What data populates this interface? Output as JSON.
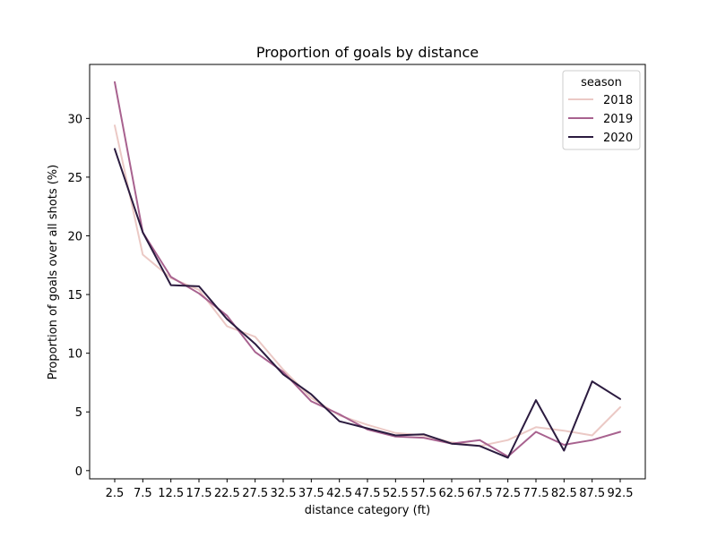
{
  "chart_data": {
    "type": "line",
    "title": "Proportion of goals by distance",
    "xlabel": "distance category (ft)",
    "ylabel": "Proportion of goals over all shots (%)",
    "categories": [
      "2.5",
      "7.5",
      "12.5",
      "17.5",
      "22.5",
      "27.5",
      "32.5",
      "37.5",
      "42.5",
      "47.5",
      "52.5",
      "57.5",
      "62.5",
      "67.5",
      "72.5",
      "77.5",
      "82.5",
      "87.5",
      "92.5"
    ],
    "ylim": [
      -0.7,
      34.6
    ],
    "yticks": [
      0,
      5,
      10,
      15,
      20,
      25,
      30
    ],
    "grid": false,
    "legend": {
      "title": "season",
      "position": "top-right"
    },
    "series": [
      {
        "name": "2018",
        "color": "#ebc9c5",
        "values": [
          29.4,
          18.4,
          16.4,
          15.4,
          12.3,
          11.4,
          8.6,
          6.2,
          4.7,
          3.9,
          3.2,
          3.0,
          2.4,
          2.1,
          2.6,
          3.7,
          3.4,
          3.0,
          5.4
        ]
      },
      {
        "name": "2019",
        "color": "#a8628f",
        "values": [
          33.1,
          20.3,
          16.5,
          15.1,
          13.2,
          10.1,
          8.4,
          5.9,
          4.8,
          3.5,
          2.9,
          2.8,
          2.3,
          2.6,
          1.2,
          3.3,
          2.2,
          2.6,
          3.3
        ]
      },
      {
        "name": "2020",
        "color": "#2b1b3f",
        "values": [
          27.4,
          20.3,
          15.8,
          15.7,
          12.9,
          10.8,
          8.2,
          6.5,
          4.2,
          3.6,
          3.0,
          3.1,
          2.3,
          2.1,
          1.1,
          6.0,
          1.7,
          7.6,
          6.1
        ]
      }
    ]
  }
}
